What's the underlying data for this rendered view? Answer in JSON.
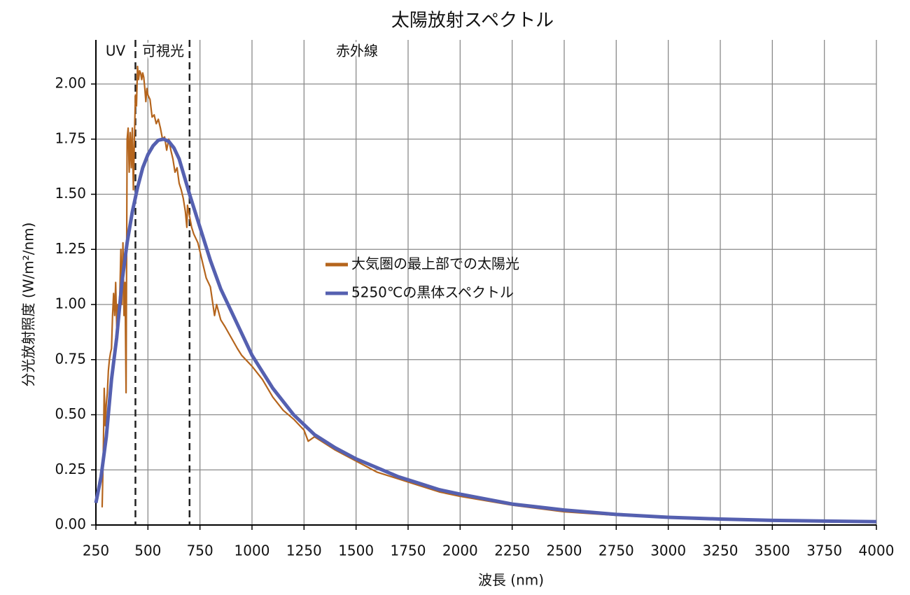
{
  "chart_data": {
    "type": "line",
    "title": "太陽放射スペクトル",
    "x_label": "波長 (nm)",
    "y_label": "分光放射照度 (W/m²/nm)",
    "xlim": [
      250,
      4000
    ],
    "xticks": [
      250,
      500,
      750,
      1000,
      1250,
      1500,
      1750,
      2000,
      2250,
      2500,
      2750,
      3000,
      3250,
      3500,
      3750,
      4000
    ],
    "ylim": [
      0,
      2.2
    ],
    "yticks": [
      {
        "value": 0,
        "label": "0.00"
      },
      {
        "value": 0.25,
        "label": "0.25"
      },
      {
        "value": 0.5,
        "label": "0.50"
      },
      {
        "value": 0.75,
        "label": "0.75"
      },
      {
        "value": 1,
        "label": "1.00"
      },
      {
        "value": 1.25,
        "label": "1.25"
      },
      {
        "value": 1.5,
        "label": "1.50"
      },
      {
        "value": 1.75,
        "label": "1.75"
      },
      {
        "value": 2,
        "label": "2.00"
      }
    ],
    "grid": true,
    "legend": "center",
    "vlines": [
      440,
      700
    ],
    "annotations": [
      "UV",
      "可視光",
      "赤外線"
    ],
    "series": [
      {
        "name": "大気圏の最上部での太陽光",
        "color": "#b5651d",
        "x": [
          280,
          285,
          290,
          295,
          300,
          305,
          310,
          315,
          320,
          325,
          330,
          335,
          340,
          345,
          350,
          355,
          360,
          365,
          370,
          375,
          380,
          385,
          390,
          395,
          400,
          405,
          410,
          415,
          420,
          425,
          430,
          435,
          440,
          445,
          450,
          455,
          460,
          465,
          470,
          475,
          480,
          485,
          490,
          495,
          500,
          510,
          520,
          530,
          540,
          550,
          560,
          570,
          580,
          590,
          600,
          610,
          620,
          630,
          640,
          650,
          660,
          670,
          680,
          687,
          690,
          700,
          710,
          720,
          740,
          760,
          780,
          800,
          820,
          830,
          850,
          870,
          900,
          930,
          950,
          1000,
          1050,
          1100,
          1150,
          1200,
          1250,
          1270,
          1300,
          1400,
          1500,
          1600,
          1700,
          1800,
          1900,
          2000,
          2250,
          2500,
          2750,
          3000,
          3250,
          3500,
          3750,
          4000
        ],
        "values": [
          0.08,
          0.3,
          0.62,
          0.45,
          0.55,
          0.6,
          0.7,
          0.75,
          0.78,
          0.8,
          0.95,
          1.05,
          0.95,
          1.1,
          0.9,
          1.0,
          0.95,
          1.05,
          1.25,
          1.0,
          1.28,
          0.95,
          1.1,
          0.6,
          1.75,
          1.8,
          1.6,
          1.78,
          1.62,
          1.8,
          1.52,
          1.75,
          1.95,
          1.9,
          2.08,
          2.02,
          2.06,
          2.05,
          2.02,
          2.05,
          2.03,
          1.98,
          1.92,
          1.98,
          1.95,
          1.93,
          1.85,
          1.86,
          1.82,
          1.84,
          1.8,
          1.75,
          1.76,
          1.7,
          1.75,
          1.7,
          1.66,
          1.6,
          1.62,
          1.55,
          1.52,
          1.48,
          1.42,
          1.35,
          1.45,
          1.4,
          1.35,
          1.32,
          1.28,
          1.2,
          1.12,
          1.08,
          0.95,
          1.0,
          0.93,
          0.9,
          0.85,
          0.8,
          0.77,
          0.72,
          0.66,
          0.58,
          0.52,
          0.48,
          0.43,
          0.38,
          0.4,
          0.34,
          0.29,
          0.24,
          0.21,
          0.18,
          0.15,
          0.13,
          0.09,
          0.06,
          0.044,
          0.032,
          0.025,
          0.02,
          0.016,
          0.014
        ]
      },
      {
        "name": "5250℃の黒体スペクトル",
        "color": "#5560b0",
        "x": [
          250,
          275,
          300,
          325,
          350,
          375,
          400,
          425,
          450,
          475,
          500,
          525,
          550,
          575,
          600,
          625,
          650,
          675,
          700,
          750,
          800,
          850,
          900,
          950,
          1000,
          1100,
          1200,
          1300,
          1400,
          1500,
          1600,
          1700,
          1800,
          1900,
          2000,
          2250,
          2500,
          2750,
          3000,
          3250,
          3500,
          3750,
          4000
        ],
        "values": [
          0.1,
          0.22,
          0.4,
          0.66,
          0.85,
          1.1,
          1.28,
          1.42,
          1.53,
          1.62,
          1.68,
          1.72,
          1.745,
          1.75,
          1.74,
          1.71,
          1.66,
          1.58,
          1.5,
          1.35,
          1.2,
          1.07,
          0.97,
          0.87,
          0.77,
          0.62,
          0.5,
          0.41,
          0.35,
          0.3,
          0.26,
          0.22,
          0.19,
          0.16,
          0.14,
          0.095,
          0.068,
          0.048,
          0.035,
          0.027,
          0.021,
          0.018,
          0.015
        ]
      }
    ]
  }
}
